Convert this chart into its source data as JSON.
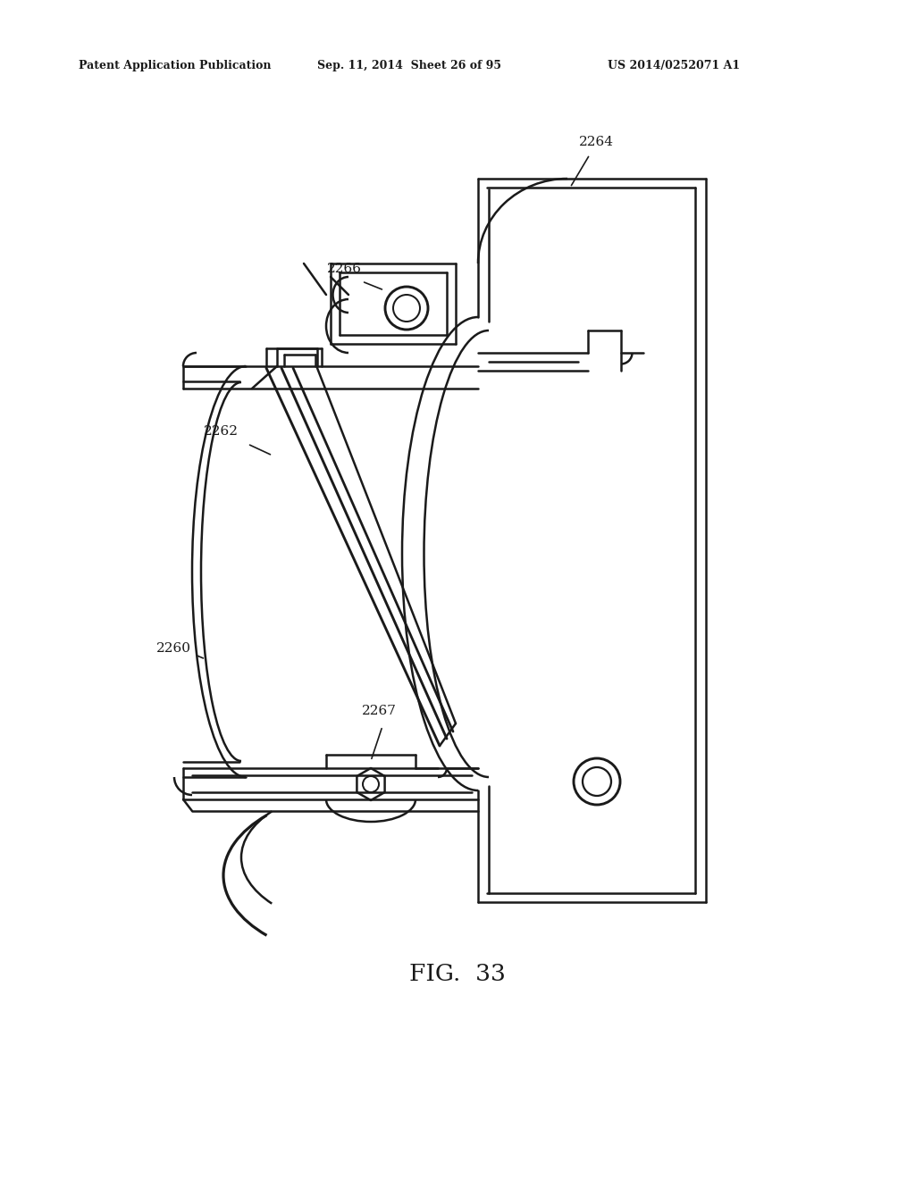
{
  "bg_color": "#ffffff",
  "line_color": "#1a1a1a",
  "header_left": "Patent Application Publication",
  "header_mid": "Sep. 11, 2014  Sheet 26 of 95",
  "header_right": "US 2014/0252071 A1",
  "figure_label": "FIG.  33",
  "lw": 1.8
}
